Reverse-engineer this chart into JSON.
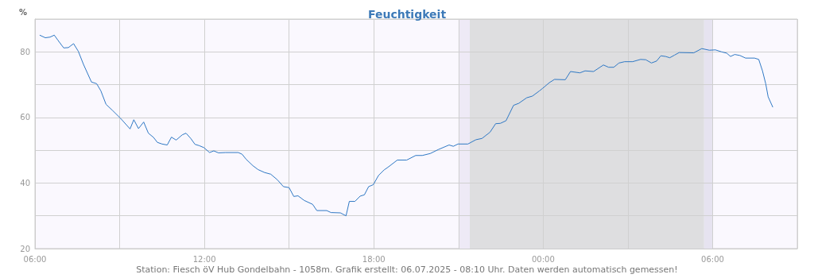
{
  "chart_data": {
    "type": "line",
    "title": "Feuchtigkeit",
    "ylabel": "%",
    "annotations": [
      "Station: Fiesch öV Hub Gondelbahn - 1058m. Grafik erstellt: 06.07.2025 - 08:10 Uhr. Daten werden automatisch gemessen!"
    ],
    "x": [
      "2025-07-05T06:10",
      "2025-07-05T06:22",
      "2025-07-05T06:32",
      "2025-07-05T06:41",
      "2025-07-05T06:49",
      "2025-07-05T07:01",
      "2025-07-05T07:11",
      "2025-07-05T07:22",
      "2025-07-05T07:32",
      "2025-07-05T07:43",
      "2025-07-05T08:00",
      "2025-07-05T08:11",
      "2025-07-05T08:20",
      "2025-07-05T08:31",
      "2025-07-05T08:45",
      "2025-07-05T09:02",
      "2025-07-05T09:22",
      "2025-07-05T09:30",
      "2025-07-05T09:40",
      "2025-07-05T09:51",
      "2025-07-05T10:01",
      "2025-07-05T10:12",
      "2025-07-05T10:20",
      "2025-07-05T10:30",
      "2025-07-05T10:41",
      "2025-07-05T10:50",
      "2025-07-05T11:00",
      "2025-07-05T11:13",
      "2025-07-05T11:21",
      "2025-07-05T11:31",
      "2025-07-05T11:40",
      "2025-07-05T11:49",
      "2025-07-05T11:59",
      "2025-07-05T12:11",
      "2025-07-05T12:20",
      "2025-07-05T12:30",
      "2025-07-05T12:45",
      "2025-07-05T13:12",
      "2025-07-05T13:20",
      "2025-07-05T13:29",
      "2025-07-05T13:43",
      "2025-07-05T13:54",
      "2025-07-05T14:08",
      "2025-07-05T14:21",
      "2025-07-05T14:35",
      "2025-07-05T14:48",
      "2025-07-05T15:00",
      "2025-07-05T15:10",
      "2025-07-05T15:19",
      "2025-07-05T15:32",
      "2025-07-05T15:50",
      "2025-07-05T15:59",
      "2025-07-05T16:20",
      "2025-07-05T16:29",
      "2025-07-05T16:49",
      "2025-07-05T17:01",
      "2025-07-05T17:08",
      "2025-07-05T17:20",
      "2025-07-05T17:31",
      "2025-07-05T17:40",
      "2025-07-05T17:49",
      "2025-07-05T17:59",
      "2025-07-05T18:10",
      "2025-07-05T18:22",
      "2025-07-05T18:30",
      "2025-07-05T18:50",
      "2025-07-05T19:10",
      "2025-07-05T19:29",
      "2025-07-05T19:43",
      "2025-07-05T20:00",
      "2025-07-05T20:17",
      "2025-07-05T20:40",
      "2025-07-05T20:49",
      "2025-07-05T20:59",
      "2025-07-05T21:20",
      "2025-07-05T21:37",
      "2025-07-05T21:50",
      "2025-07-05T22:07",
      "2025-07-05T22:19",
      "2025-07-05T22:29",
      "2025-07-05T22:41",
      "2025-07-05T22:57",
      "2025-07-05T23:08",
      "2025-07-05T23:25",
      "2025-07-05T23:37",
      "2025-07-05T23:52",
      "2025-07-05T23:59",
      "2025-07-06T00:13",
      "2025-07-06T00:24",
      "2025-07-06T00:47",
      "2025-07-06T00:58",
      "2025-07-06T01:18",
      "2025-07-06T01:29",
      "2025-07-06T01:47",
      "2025-07-06T02:08",
      "2025-07-06T02:19",
      "2025-07-06T02:30",
      "2025-07-06T02:41",
      "2025-07-06T02:53",
      "2025-07-06T03:10",
      "2025-07-06T03:27",
      "2025-07-06T03:38",
      "2025-07-06T03:50",
      "2025-07-06T04:01",
      "2025-07-06T04:10",
      "2025-07-06T04:20",
      "2025-07-06T04:29",
      "2025-07-06T04:39",
      "2025-07-06T04:49",
      "2025-07-06T05:20",
      "2025-07-06T05:37",
      "2025-07-06T05:53",
      "2025-07-06T06:06",
      "2025-07-06T06:19",
      "2025-07-06T06:30",
      "2025-07-06T06:38",
      "2025-07-06T06:47",
      "2025-07-06T06:58",
      "2025-07-06T07:10",
      "2025-07-06T07:29",
      "2025-07-06T07:38",
      "2025-07-06T07:46",
      "2025-07-06T07:53",
      "2025-07-06T07:58",
      "2025-07-06T08:08"
    ],
    "series": [
      {
        "color": "#2f78c4",
        "values": [
          85.1,
          84.3,
          84.5,
          85.1,
          83.5,
          81.2,
          81.3,
          82.5,
          80.2,
          76.2,
          70.8,
          70.3,
          68.1,
          64.0,
          62.1,
          59.7,
          56.5,
          59.3,
          56.6,
          58.6,
          55.2,
          53.9,
          52.4,
          51.9,
          51.6,
          54.0,
          53.1,
          54.7,
          55.2,
          53.6,
          51.8,
          51.4,
          50.8,
          49.3,
          49.8,
          49.2,
          49.3,
          49.3,
          48.8,
          47.2,
          45.3,
          44.1,
          43.2,
          42.7,
          41.0,
          38.9,
          38.6,
          35.9,
          36.1,
          34.7,
          33.5,
          31.6,
          31.6,
          31.0,
          30.9,
          30.0,
          34.4,
          34.4,
          36.0,
          36.4,
          38.9,
          39.5,
          42.3,
          44.0,
          44.8,
          47.0,
          47.0,
          48.4,
          48.4,
          49.0,
          50.2,
          51.6,
          51.2,
          51.9,
          51.9,
          53.2,
          53.6,
          55.5,
          58.1,
          58.2,
          59.0,
          63.7,
          64.3,
          66.0,
          66.5,
          68.1,
          68.9,
          70.6,
          71.6,
          71.5,
          74.0,
          73.6,
          74.2,
          74.0,
          76.0,
          75.3,
          75.3,
          76.6,
          77.0,
          77.0,
          77.7,
          77.6,
          76.6,
          77.2,
          78.8,
          78.6,
          78.2,
          79.0,
          79.8,
          79.7,
          81.0,
          80.5,
          80.6,
          80.0,
          79.6,
          78.6,
          79.2,
          78.9,
          78.1,
          78.1,
          77.7,
          74.2,
          70.2,
          66.3,
          63.1
        ]
      }
    ],
    "xlim": [
      "2025-07-05T06:00",
      "2025-07-06T09:00"
    ],
    "xticks": [
      {
        "value": "2025-07-05T06:00",
        "label": "06:00"
      },
      {
        "value": "2025-07-05T09:00",
        "label": null
      },
      {
        "value": "2025-07-05T12:00",
        "label": "12:00"
      },
      {
        "value": "2025-07-05T15:00",
        "label": null
      },
      {
        "value": "2025-07-05T18:00",
        "label": "18:00"
      },
      {
        "value": "2025-07-05T21:00",
        "label": null
      },
      {
        "value": "2025-07-06T00:00",
        "label": "00:00"
      },
      {
        "value": "2025-07-06T03:00",
        "label": null
      },
      {
        "value": "2025-07-06T06:00",
        "label": "06:00"
      },
      {
        "value": "2025-07-06T09:00",
        "label": null
      }
    ],
    "ylim": [
      20,
      90
    ],
    "yticks": [
      20,
      {
        "value": 30,
        "label": null
      },
      40,
      {
        "value": 50,
        "label": null
      },
      60,
      {
        "value": 70,
        "label": null
      },
      80,
      {
        "value": 90,
        "label": null
      }
    ],
    "bands": [
      {
        "axis": "x",
        "from": "2025-07-05T21:00",
        "to": "2025-07-05T21:24",
        "label": null,
        "color": "#eeeaf6"
      },
      {
        "axis": "x",
        "from": "2025-07-05T21:24",
        "to": "2025-07-06T05:42",
        "label": null,
        "color": "#dedee0"
      },
      {
        "axis": "x",
        "from": "2025-07-06T05:42",
        "to": "2025-07-06T06:00",
        "label": null,
        "color": "#e6e3f0"
      }
    ],
    "grid": true,
    "marker": "none",
    "line_style": "solid"
  }
}
